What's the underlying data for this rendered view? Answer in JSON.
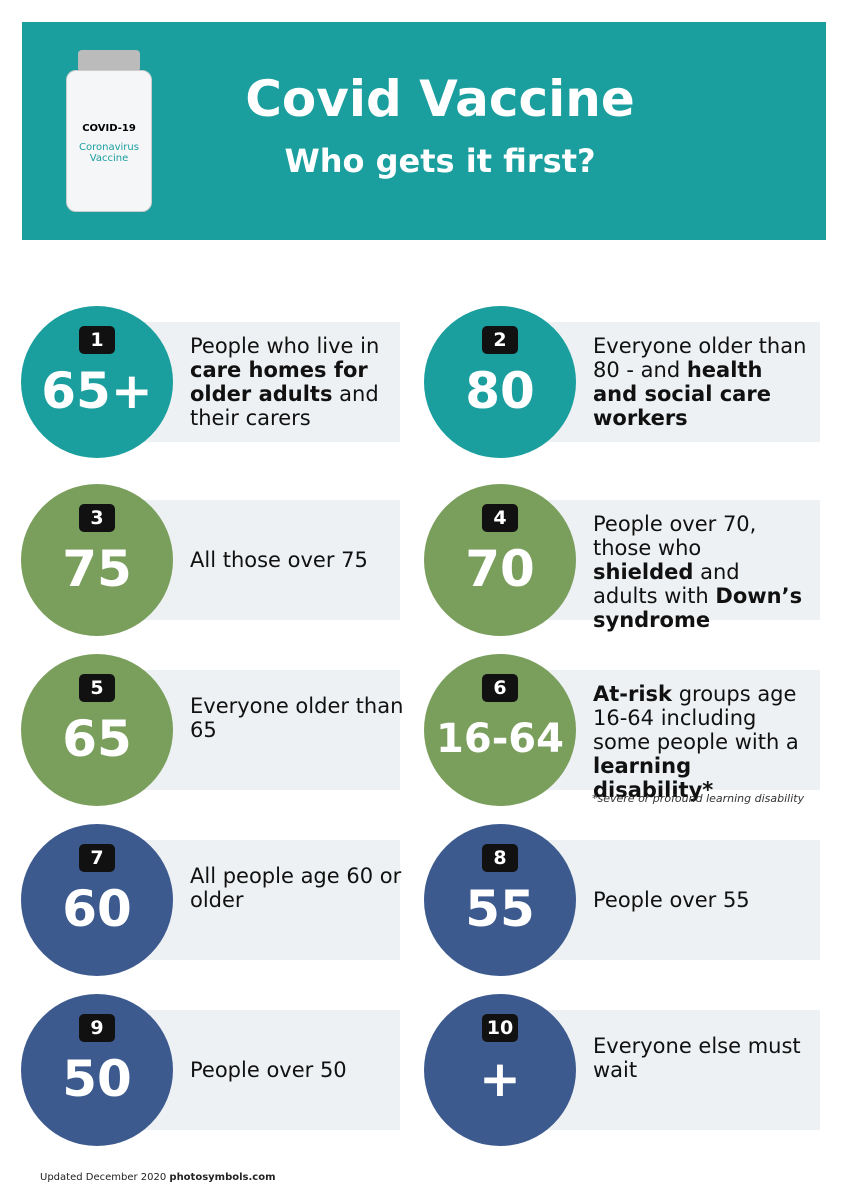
{
  "header": {
    "title": "Covid Vaccine",
    "subtitle": "Who gets it first?",
    "vial": {
      "line1": "COVID-19",
      "line2": "Coronavirus",
      "line3": "Vaccine"
    },
    "color": "#1a9e9e"
  },
  "items": [
    {
      "number": "1",
      "label": "65+",
      "color": "#1a9e9e",
      "description": [
        {
          "text": "People who live in ",
          "bold": false
        },
        {
          "text": "care homes for older adults",
          "bold": true
        },
        {
          "text": " and their carers",
          "bold": false
        }
      ]
    },
    {
      "number": "2",
      "label": "80",
      "color": "#1a9e9e",
      "description": [
        {
          "text": "Everyone older than 80 - and ",
          "bold": false
        },
        {
          "text": "health and social care workers",
          "bold": true
        }
      ]
    },
    {
      "number": "3",
      "label": "75",
      "color": "#7a9e5c",
      "description": [
        {
          "text": "All those over 75",
          "bold": false
        }
      ]
    },
    {
      "number": "4",
      "label": "70",
      "color": "#7a9e5c",
      "description": [
        {
          "text": "People over 70, those who ",
          "bold": false
        },
        {
          "text": "shielded",
          "bold": true
        },
        {
          "text": " and adults with ",
          "bold": false
        },
        {
          "text": "Down’s syndrome",
          "bold": true
        }
      ]
    },
    {
      "number": "5",
      "label": "65",
      "color": "#7a9e5c",
      "description": [
        {
          "text": "Everyone older than 65",
          "bold": false
        }
      ]
    },
    {
      "number": "6",
      "label": "16-64",
      "color": "#7a9e5c",
      "description": [
        {
          "text": "At-risk",
          "bold": true
        },
        {
          "text": " groups age 16-64 including some people with a ",
          "bold": false
        },
        {
          "text": "learning disability*",
          "bold": true
        }
      ],
      "footnote": "*severe or profound learning disability"
    },
    {
      "number": "7",
      "label": "60",
      "color": "#3d5a8f",
      "description": [
        {
          "text": "All people age 60 or older",
          "bold": false
        }
      ]
    },
    {
      "number": "8",
      "label": "55",
      "color": "#3d5a8f",
      "description": [
        {
          "text": "People over 55",
          "bold": false
        }
      ]
    },
    {
      "number": "9",
      "label": "50",
      "color": "#3d5a8f",
      "description": [
        {
          "text": "People over 50",
          "bold": false
        }
      ]
    },
    {
      "number": "10",
      "label": "+",
      "color": "#3d5a8f",
      "description": [
        {
          "text": "Everyone else must wait",
          "bold": false
        }
      ]
    }
  ],
  "footer": {
    "text": "Updated December 2020 ",
    "site": "photosymbols.com"
  }
}
